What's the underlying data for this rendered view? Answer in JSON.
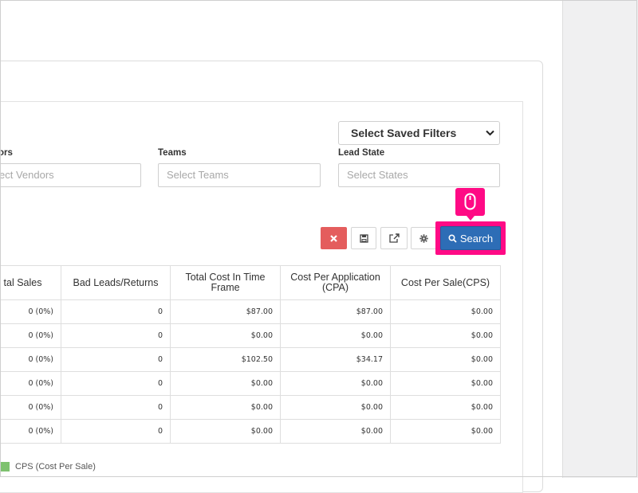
{
  "filters": {
    "saved_filters": {
      "selected": "Select Saved Filters"
    },
    "vendors": {
      "label": "ors",
      "placeholder": "ect Vendors"
    },
    "teams": {
      "label": "Teams",
      "placeholder": "Select Teams"
    },
    "lead_state": {
      "label": "Lead State",
      "placeholder": "Select States"
    }
  },
  "toolbar": {
    "clear_icon": "times-icon",
    "save_icon": "floppy-disk-icon",
    "export_icon": "external-link-icon",
    "settings_icon": "gear-icon",
    "search_label": "Search",
    "accent_color": "#2d6db6",
    "highlight_color": "#ff0a85"
  },
  "table": {
    "headers": [
      "tal Sales",
      "Bad Leads/Returns",
      "Total Cost In Time Frame",
      "Cost Per Application (CPA)",
      "Cost Per Sale(CPS)"
    ],
    "rows": [
      [
        "0 (0%)",
        "0",
        "$87.00",
        "$87.00",
        "$0.00"
      ],
      [
        "0 (0%)",
        "0",
        "$0.00",
        "$0.00",
        "$0.00"
      ],
      [
        "0 (0%)",
        "0",
        "$102.50",
        "$34.17",
        "$0.00"
      ],
      [
        "0 (0%)",
        "0",
        "$0.00",
        "$0.00",
        "$0.00"
      ],
      [
        "0 (0%)",
        "0",
        "$0.00",
        "$0.00",
        "$0.00"
      ],
      [
        "0 (0%)",
        "0",
        "$0.00",
        "$0.00",
        "$0.00"
      ]
    ]
  },
  "legend": {
    "label": "CPS (Cost Per Sale)",
    "color": "#7ec26f"
  }
}
